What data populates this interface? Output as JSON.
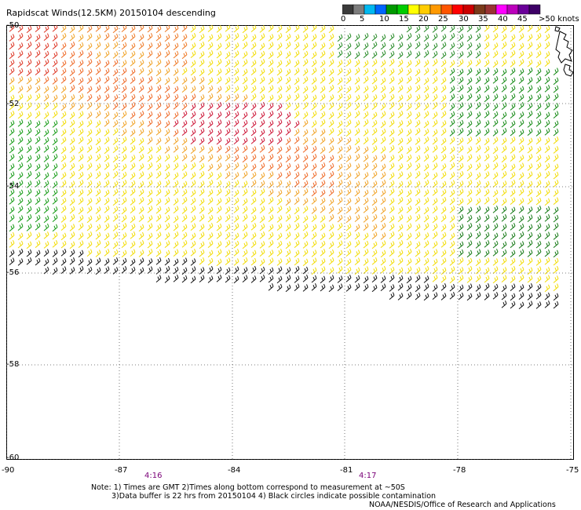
{
  "title": "Rapidscat Winds(12.5KM) 20150104 descending",
  "colorbar": {
    "unit_label": ">50 knots",
    "tick_labels": [
      "0",
      "5",
      "10",
      "15",
      "20",
      "25",
      "30",
      "35",
      "40",
      "45"
    ],
    "colors": [
      "#3a3a3a",
      "#7d7d7d",
      "#00b8f0",
      "#0066ff",
      "#009900",
      "#00cc00",
      "#ffff00",
      "#ffcc00",
      "#ff9900",
      "#ff5500",
      "#ff0000",
      "#cc0000",
      "#7a3a1a",
      "#993333",
      "#ff00ff",
      "#bb00bb",
      "#6a0099",
      "#3d0066"
    ]
  },
  "map": {
    "lon_labels": [
      "-90",
      "-87",
      "-84",
      "-81",
      "-78",
      "-75"
    ],
    "lat_labels": [
      "-50",
      "-52",
      "-54",
      "-56",
      "-58",
      "-60"
    ],
    "time_labels": [
      "4:16",
      "4:17"
    ]
  },
  "notes": {
    "line1": "Note: 1) Times are GMT 2)Times along bottom correspond to measurement at ~50S",
    "line2": "3)Data buffer is 22 hrs from 20150104 4) Black circles indicate possible contamination",
    "credit": "NOAA/NESDIS/Office of Research and Applications"
  }
}
